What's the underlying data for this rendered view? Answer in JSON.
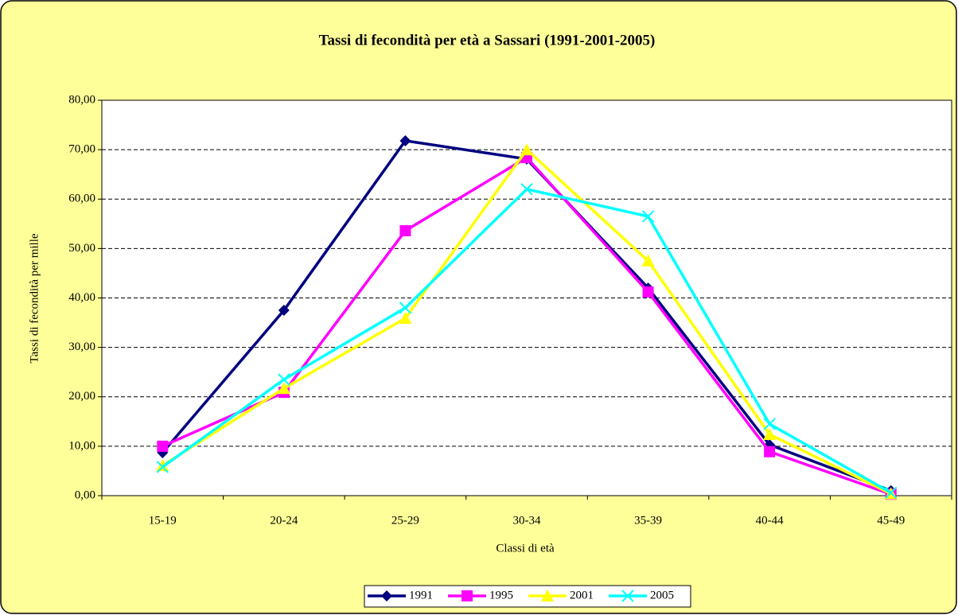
{
  "chart_data": {
    "type": "line",
    "title": "Tassi di fecondità per età a Sassari (1991-2001-2005)",
    "x_label": "Classi di età",
    "y_label": "Tassi di fecondità per mille",
    "categories": [
      "15-19",
      "20-24",
      "25-29",
      "30-34",
      "35-39",
      "40-44",
      "45-49"
    ],
    "series": [
      {
        "name": "1991",
        "color": "#000080",
        "marker": "diamond",
        "values": [
          8.7,
          37.5,
          71.8,
          68.1,
          42.0,
          10.3,
          1.0
        ]
      },
      {
        "name": "1995",
        "color": "#ff00ff",
        "marker": "square",
        "values": [
          10.0,
          20.9,
          53.6,
          68.4,
          41.2,
          8.9,
          0.3
        ]
      },
      {
        "name": "2001",
        "color": "#ffff00",
        "marker": "triangle",
        "values": [
          6.1,
          21.7,
          35.9,
          70.0,
          47.5,
          12.4,
          0.4
        ]
      },
      {
        "name": "2005",
        "color": "#00ffff",
        "marker": "x",
        "values": [
          5.8,
          23.5,
          38.0,
          62.0,
          56.5,
          14.5,
          0.6
        ]
      }
    ],
    "ylim": [
      0,
      80
    ],
    "yticks": [
      {
        "value": 0,
        "label": "0,00"
      },
      {
        "value": 10,
        "label": "10,00"
      },
      {
        "value": 20,
        "label": "20,00"
      },
      {
        "value": 30,
        "label": "30,00"
      },
      {
        "value": 40,
        "label": "40,00"
      },
      {
        "value": 50,
        "label": "50,00"
      },
      {
        "value": 60,
        "label": "60,00"
      },
      {
        "value": 70,
        "label": "70,00"
      },
      {
        "value": 80,
        "label": "80,00"
      }
    ],
    "grid": true,
    "legend": "bottom"
  }
}
